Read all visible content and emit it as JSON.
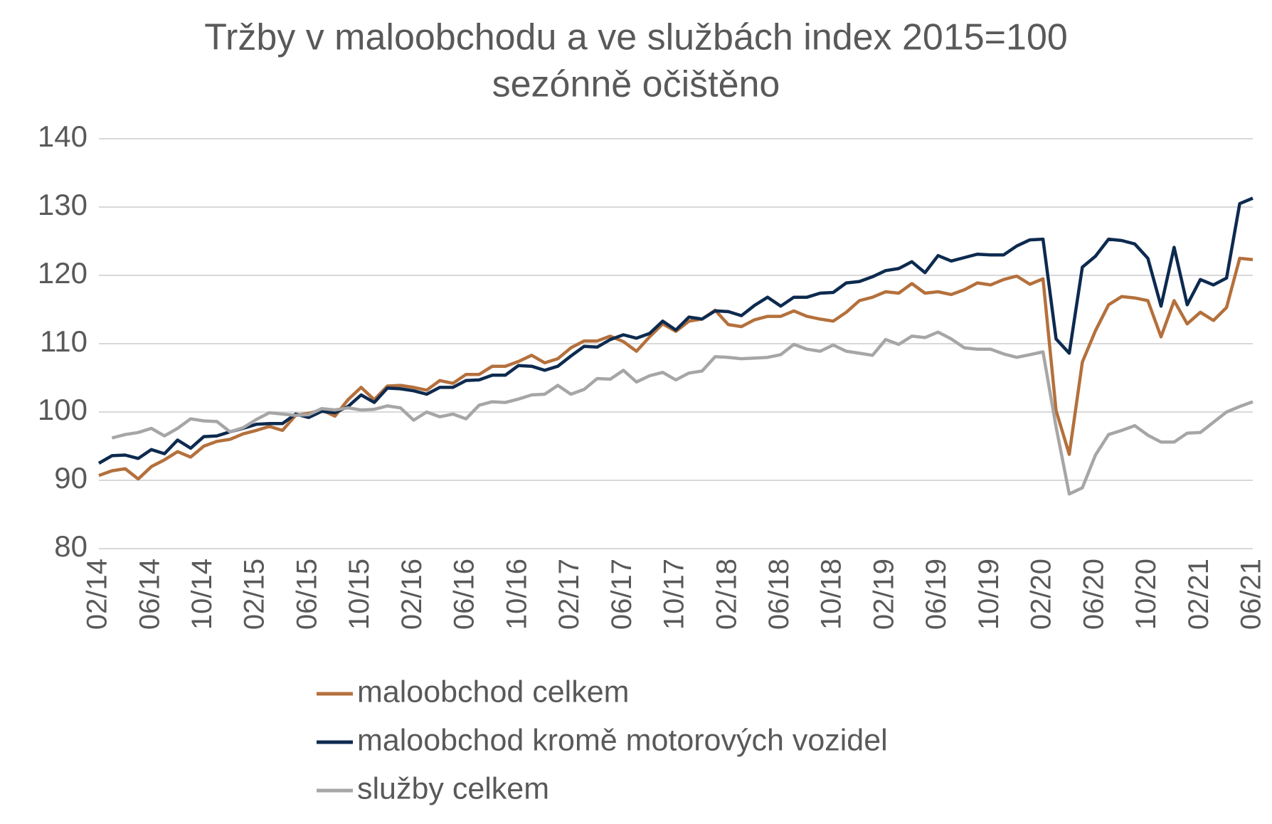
{
  "chart_data": {
    "type": "line",
    "title": "Tržby v maloobchodu a ve službách index 2015=100",
    "subtitle": "sezónně očištěno",
    "categories": [
      "02/14",
      null,
      null,
      null,
      "06/14",
      null,
      null,
      null,
      "10/14",
      null,
      null,
      null,
      "02/15",
      null,
      null,
      null,
      "06/15",
      null,
      null,
      null,
      "10/15",
      null,
      null,
      null,
      "02/16",
      null,
      null,
      null,
      "06/16",
      null,
      null,
      null,
      "10/16",
      null,
      null,
      null,
      "02/17",
      null,
      null,
      null,
      "06/17",
      null,
      null,
      null,
      "10/17",
      null,
      null,
      null,
      "02/18",
      null,
      null,
      null,
      "06/18",
      null,
      null,
      null,
      "10/18",
      null,
      null,
      null,
      "02/19",
      null,
      null,
      null,
      "06/19",
      null,
      null,
      null,
      "10/19",
      null,
      null,
      null,
      "02/20",
      null,
      null,
      null,
      "06/20",
      null,
      null,
      null,
      "10/20",
      null,
      null,
      null,
      "02/21",
      null,
      null,
      null,
      "06/21"
    ],
    "series": [
      {
        "name": "maloobchod celkem",
        "color": "#b4703c",
        "values": [
          90.7,
          91.4,
          91.7,
          90.2,
          92.0,
          93.0,
          94.2,
          93.4,
          95.0,
          95.7,
          96.0,
          96.8,
          97.3,
          97.9,
          97.3,
          99.5,
          99.8,
          100.3,
          99.4,
          101.8,
          103.6,
          101.8,
          103.8,
          103.9,
          103.6,
          103.2,
          104.6,
          104.2,
          105.5,
          105.5,
          106.7,
          106.7,
          107.4,
          108.3,
          107.2,
          107.8,
          109.4,
          110.4,
          110.4,
          111.1,
          110.3,
          108.9,
          111.0,
          112.9,
          111.8,
          113.3,
          113.6,
          114.9,
          112.8,
          112.5,
          113.5,
          114.0,
          114.0,
          114.8,
          114.0,
          113.6,
          113.3,
          114.6,
          116.3,
          116.8,
          117.6,
          117.4,
          118.8,
          117.4,
          117.6,
          117.2,
          117.9,
          118.9,
          118.6,
          119.4,
          119.9,
          118.7,
          119.5,
          100.2,
          93.8,
          107.3,
          111.9,
          115.7,
          116.9,
          116.7,
          116.3,
          111.0,
          116.3,
          112.9,
          114.6,
          113.4,
          115.3,
          122.5,
          122.3
        ]
      },
      {
        "name": "maloobchod kromě motorových vozidel",
        "color": "#0d2a4f",
        "values": [
          92.5,
          93.6,
          93.7,
          93.2,
          94.5,
          93.9,
          95.9,
          94.7,
          96.4,
          96.5,
          97.1,
          97.6,
          98.2,
          98.3,
          98.3,
          99.7,
          99.2,
          100.1,
          99.9,
          100.8,
          102.5,
          101.4,
          103.5,
          103.4,
          103.1,
          102.6,
          103.6,
          103.6,
          104.6,
          104.7,
          105.4,
          105.4,
          106.8,
          106.7,
          106.1,
          106.7,
          108.2,
          109.6,
          109.5,
          110.6,
          111.3,
          110.8,
          111.5,
          113.3,
          112.0,
          113.9,
          113.6,
          114.8,
          114.7,
          114.1,
          115.6,
          116.8,
          115.5,
          116.8,
          116.8,
          117.4,
          117.5,
          118.9,
          119.1,
          119.8,
          120.7,
          121.0,
          122.0,
          120.4,
          122.9,
          122.1,
          122.6,
          123.1,
          123.0,
          123.0,
          124.3,
          125.2,
          125.3,
          110.7,
          108.6,
          121.2,
          122.8,
          125.3,
          125.1,
          124.6,
          122.5,
          115.5,
          124.1,
          115.7,
          119.4,
          118.6,
          119.6,
          130.5,
          131.3
        ]
      },
      {
        "name": "služby celkem",
        "color": "#a6a6a6",
        "values": [
          null,
          96.2,
          96.7,
          97.0,
          97.6,
          96.5,
          97.6,
          99.0,
          98.7,
          98.6,
          97.1,
          97.7,
          98.9,
          99.9,
          99.7,
          99.5,
          99.6,
          100.5,
          100.3,
          100.6,
          100.3,
          100.4,
          100.9,
          100.6,
          98.8,
          100.0,
          99.3,
          99.7,
          99.0,
          101.0,
          101.5,
          101.4,
          101.9,
          102.5,
          102.6,
          103.9,
          102.6,
          103.3,
          104.9,
          104.8,
          106.1,
          104.4,
          105.3,
          105.8,
          104.7,
          105.7,
          106.0,
          108.1,
          108.0,
          107.8,
          107.9,
          108.0,
          108.4,
          109.9,
          109.2,
          108.9,
          109.8,
          108.9,
          108.6,
          108.3,
          110.6,
          109.9,
          111.1,
          110.9,
          111.7,
          110.7,
          109.4,
          109.2,
          109.2,
          108.5,
          108.0,
          108.4,
          108.8,
          97.8,
          88.0,
          88.9,
          93.7,
          96.7,
          97.3,
          98.0,
          96.6,
          95.6,
          95.6,
          96.9,
          97.0,
          98.5,
          100.0,
          100.8,
          101.5
        ]
      }
    ],
    "ylim": [
      80,
      140
    ],
    "yticks": [
      80,
      90,
      100,
      110,
      120,
      130,
      140
    ],
    "grid": true
  }
}
